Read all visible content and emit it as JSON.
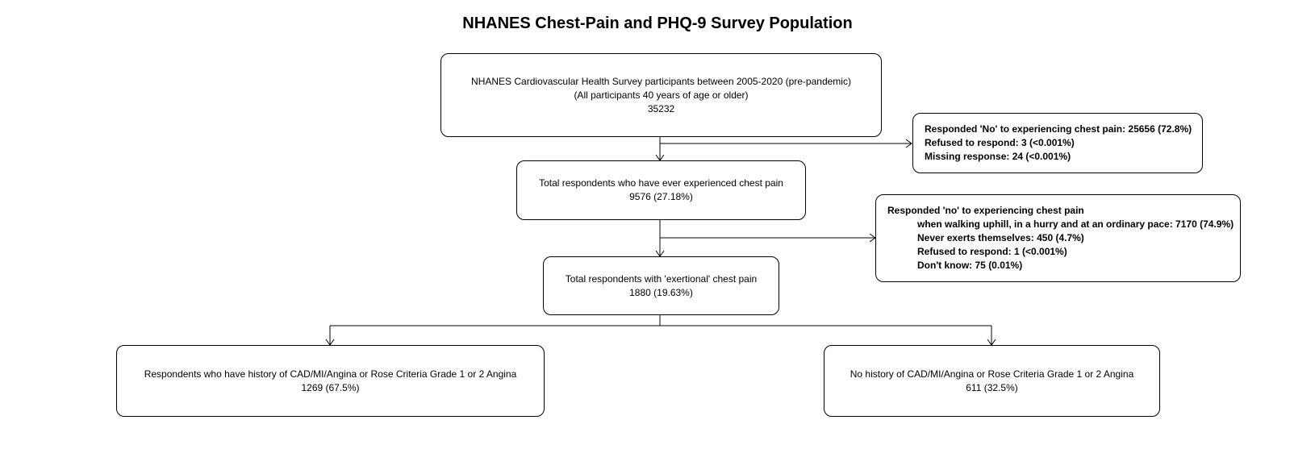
{
  "title": "NHANES Chest-Pain and PHQ-9 Survey Population",
  "boxes": {
    "population": {
      "line1": "NHANES Cardiovascular Health Survey participants between 2005-2020 (pre-pandemic)",
      "line2": "(All participants 40 years of age or older)",
      "count": "35232"
    },
    "chest_pain": {
      "line1": "Total respondents who have ever experienced chest pain",
      "count": "9576 (27.18%)"
    },
    "exertional": {
      "line1": "Total respondents with 'exertional' chest pain",
      "count": "1880 (19.63%)"
    },
    "history": {
      "line1": "Respondents who have history of CAD/MI/Angina or Rose Criteria Grade 1 or 2 Angina",
      "count": "1269 (67.5%)"
    },
    "no_history": {
      "line1": "No history of CAD/MI/Angina or Rose Criteria Grade 1 or 2 Angina",
      "count": "611 (32.5%)"
    }
  },
  "exclusions": {
    "first": [
      "Responded 'No' to experiencing chest pain: 25656 (72.8%)",
      "Refused to respond: 3 (<0.001%)",
      "Missing response: 24 (<0.001%)"
    ],
    "second": {
      "header": "Responded 'no' to experiencing chest pain",
      "items": [
        "when walking uphill, in a hurry and at an ordinary pace: 7170 (74.9%)",
        "Never exerts themselves: 450 (4.7%)",
        "Refused to respond: 1 (<0.001%)",
        "Don't know: 75 (0.01%)"
      ]
    }
  }
}
